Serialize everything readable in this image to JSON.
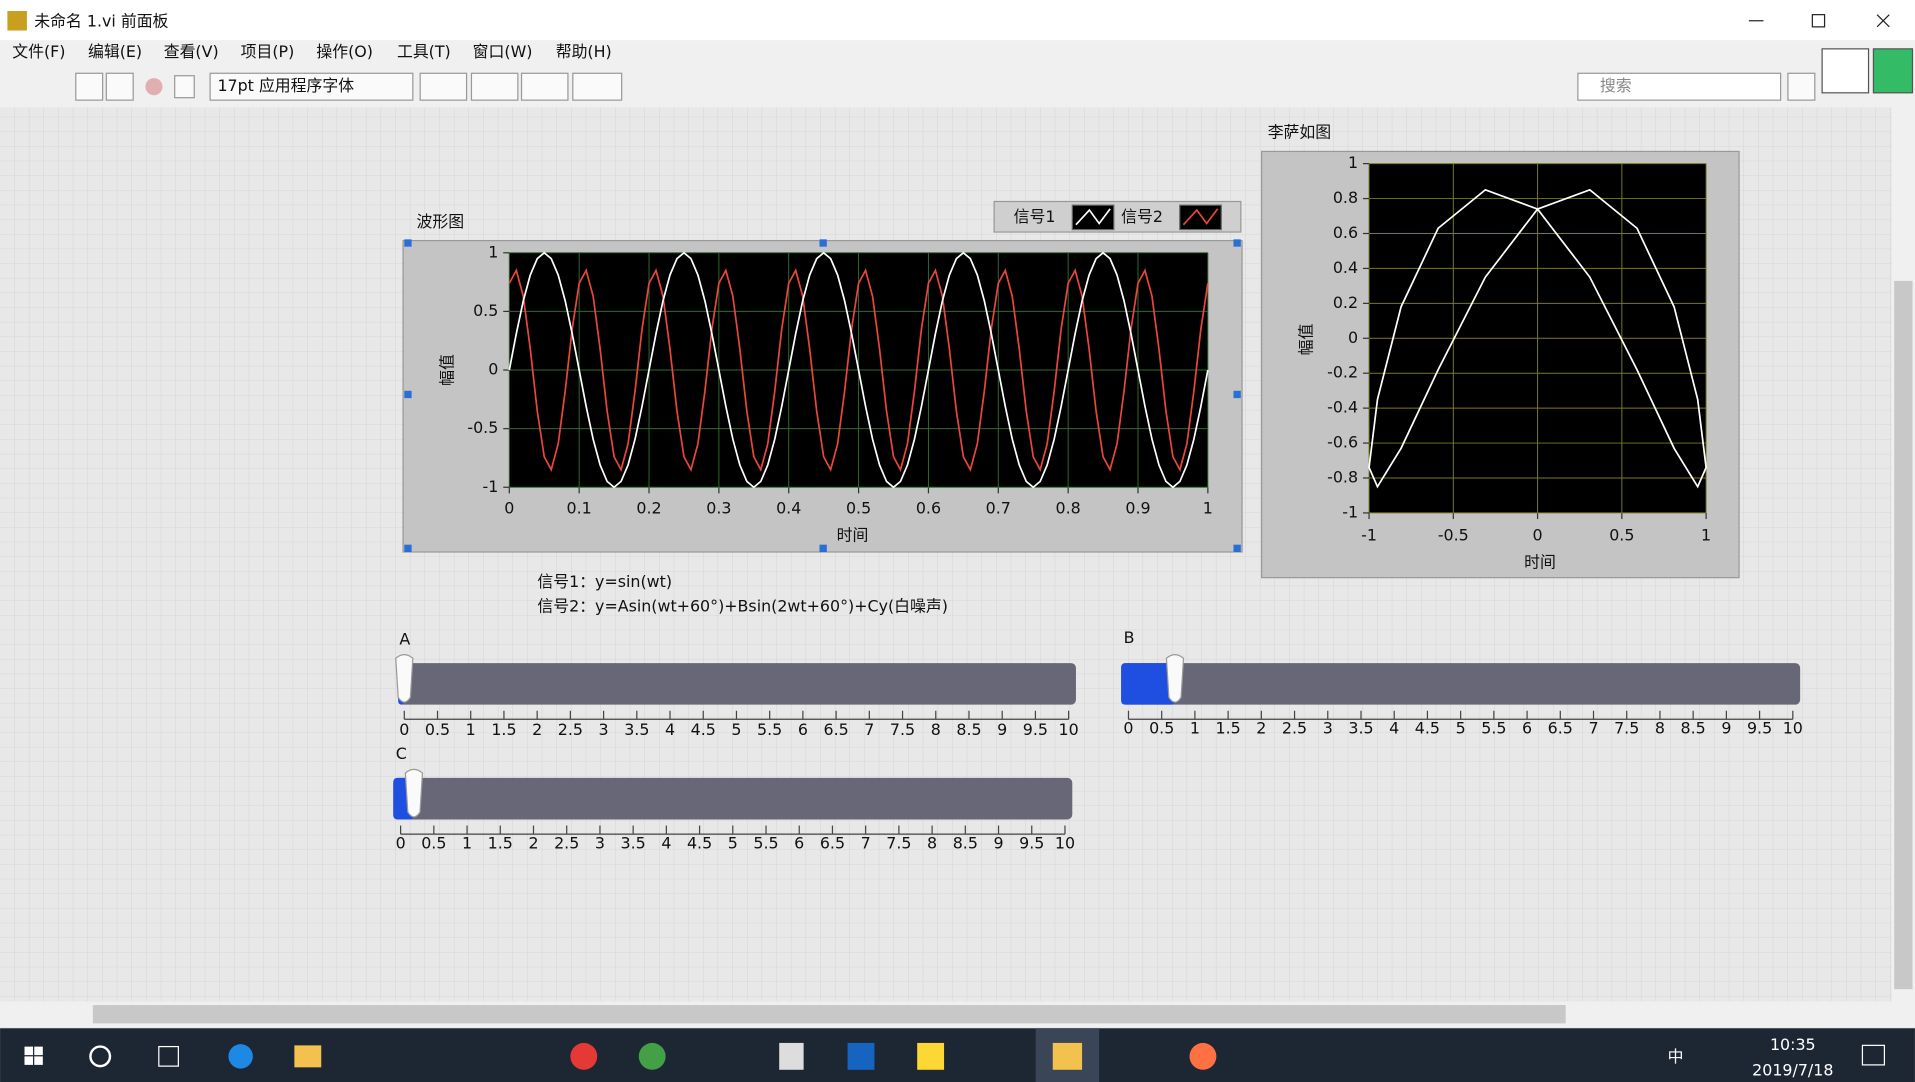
{
  "window": {
    "title": "未命名 1.vi 前面板"
  },
  "menu": [
    "文件(F)",
    "编辑(E)",
    "查看(V)",
    "项目(P)",
    "操作(O)",
    "工具(T)",
    "窗口(W)",
    "帮助(H)"
  ],
  "toolbar": {
    "font": "17pt 应用程序字体",
    "search_placeholder": "搜索"
  },
  "chart_data": [
    {
      "type": "waveform",
      "title": "波形图",
      "x_label": "时间",
      "y_label": "幅值",
      "xlim": [
        0,
        1
      ],
      "ylim": [
        -1,
        1
      ],
      "xticks": [
        0,
        0.1,
        0.2,
        0.3,
        0.4,
        0.5,
        0.6,
        0.7,
        0.8,
        0.9,
        1
      ],
      "yticks": [
        -1,
        -0.5,
        0,
        0.5,
        1
      ],
      "grid": true,
      "x": [
        0,
        0.01,
        0.02,
        0.03,
        0.04,
        0.05,
        0.06,
        0.07,
        0.08,
        0.09,
        0.1,
        0.11,
        0.12,
        0.13,
        0.14,
        0.15,
        0.16,
        0.17,
        0.18,
        0.19,
        0.2,
        0.21,
        0.22,
        0.23,
        0.24,
        0.25,
        0.26,
        0.27,
        0.28,
        0.29,
        0.3,
        0.31,
        0.32,
        0.33,
        0.34,
        0.35,
        0.36,
        0.37,
        0.38,
        0.39,
        0.4,
        0.41,
        0.42,
        0.43,
        0.44,
        0.45,
        0.46,
        0.47,
        0.48,
        0.49,
        0.5,
        0.51,
        0.52,
        0.53,
        0.54,
        0.55,
        0.56,
        0.57,
        0.58,
        0.59,
        0.6,
        0.61,
        0.62,
        0.63,
        0.64,
        0.65,
        0.66,
        0.67,
        0.68,
        0.69,
        0.7,
        0.71,
        0.72,
        0.73,
        0.74,
        0.75,
        0.76,
        0.77,
        0.78,
        0.79,
        0.8,
        0.81,
        0.82,
        0.83,
        0.84,
        0.85,
        0.86,
        0.87,
        0.88,
        0.89,
        0.9,
        0.91,
        0.92,
        0.93,
        0.94,
        0.95,
        0.96,
        0.97,
        0.98,
        0.99,
        1
      ],
      "series": [
        {
          "name": "信号1",
          "color": "#ffffff",
          "values": [
            0,
            0.31,
            0.59,
            0.81,
            0.95,
            1,
            0.95,
            0.81,
            0.59,
            0.31,
            0,
            -0.31,
            -0.59,
            -0.81,
            -0.95,
            -1,
            -0.95,
            -0.81,
            -0.59,
            -0.31,
            0,
            0.31,
            0.59,
            0.81,
            0.95,
            1,
            0.95,
            0.81,
            0.59,
            0.31,
            0,
            -0.31,
            -0.59,
            -0.81,
            -0.95,
            -1,
            -0.95,
            -0.81,
            -0.59,
            -0.31,
            0,
            0.31,
            0.59,
            0.81,
            0.95,
            1,
            0.95,
            0.81,
            0.59,
            0.31,
            0,
            -0.31,
            -0.59,
            -0.81,
            -0.95,
            -1,
            -0.95,
            -0.81,
            -0.59,
            -0.31,
            0,
            0.31,
            0.59,
            0.81,
            0.95,
            1,
            0.95,
            0.81,
            0.59,
            0.31,
            0,
            -0.31,
            -0.59,
            -0.81,
            -0.95,
            -1,
            -0.95,
            -0.81,
            -0.59,
            -0.31,
            0,
            0.31,
            0.59,
            0.81,
            0.95,
            1,
            0.95,
            0.81,
            0.59,
            0.31,
            0,
            -0.31,
            -0.59,
            -0.81,
            -0.95,
            -1,
            -0.95,
            -0.81,
            -0.59,
            -0.31,
            0
          ]
        },
        {
          "name": "信号2",
          "color": "#e8473a",
          "values": [
            0.74,
            0.85,
            0.63,
            0.18,
            -0.35,
            -0.74,
            -0.85,
            -0.63,
            -0.18,
            0.35,
            0.74,
            0.85,
            0.63,
            0.18,
            -0.35,
            -0.74,
            -0.85,
            -0.63,
            -0.18,
            0.35,
            0.74,
            0.85,
            0.63,
            0.18,
            -0.35,
            -0.74,
            -0.85,
            -0.63,
            -0.18,
            0.35,
            0.74,
            0.85,
            0.63,
            0.18,
            -0.35,
            -0.74,
            -0.85,
            -0.63,
            -0.18,
            0.35,
            0.74,
            0.85,
            0.63,
            0.18,
            -0.35,
            -0.74,
            -0.85,
            -0.63,
            -0.18,
            0.35,
            0.74,
            0.85,
            0.63,
            0.18,
            -0.35,
            -0.74,
            -0.85,
            -0.63,
            -0.18,
            0.35,
            0.74,
            0.85,
            0.63,
            0.18,
            -0.35,
            -0.74,
            -0.85,
            -0.63,
            -0.18,
            0.35,
            0.74,
            0.85,
            0.63,
            0.18,
            -0.35,
            -0.74,
            -0.85,
            -0.63,
            -0.18,
            0.35,
            0.74,
            0.85,
            0.63,
            0.18,
            -0.35,
            -0.74,
            -0.85,
            -0.63,
            -0.18,
            0.35,
            0.74,
            0.85,
            0.63,
            0.18,
            -0.35,
            -0.74,
            -0.85,
            -0.63,
            -0.18,
            0.35,
            0.74
          ]
        }
      ]
    },
    {
      "type": "xy",
      "title": "李萨如图",
      "x_label": "时间",
      "y_label": "幅值",
      "color": "#ffffff",
      "xlim": [
        -1,
        1
      ],
      "ylim": [
        -1,
        1
      ],
      "xticks": [
        -1,
        -0.5,
        0,
        0.5,
        1
      ],
      "yticks": [
        -1,
        -0.8,
        -0.6,
        -0.4,
        -0.2,
        0,
        0.2,
        0.4,
        0.6,
        0.8,
        1
      ],
      "grid": true
    }
  ],
  "notes": [
    "信号1：y=sin(wt)",
    "信号2：y=Asin(wt+60°)+Bsin(2wt+60°)+Cy(白噪声)"
  ],
  "sliders": [
    {
      "label": "A",
      "value": 0,
      "lim": [
        0,
        10
      ],
      "ticks": [
        0,
        0.5,
        1,
        1.5,
        2,
        2.5,
        3,
        3.5,
        4,
        4.5,
        5,
        5.5,
        6,
        6.5,
        7,
        7.5,
        8,
        8.5,
        9,
        9.5,
        10
      ]
    },
    {
      "label": "B",
      "value": 0.7,
      "lim": [
        0,
        10
      ],
      "ticks": [
        0,
        0.5,
        1,
        1.5,
        2,
        2.5,
        3,
        3.5,
        4,
        4.5,
        5,
        5.5,
        6,
        6.5,
        7,
        7.5,
        8,
        8.5,
        9,
        9.5,
        10
      ]
    },
    {
      "label": "C",
      "value": 0.2,
      "lim": [
        0,
        10
      ],
      "ticks": [
        0,
        0.5,
        1,
        1.5,
        2,
        2.5,
        3,
        3.5,
        4,
        4.5,
        5,
        5.5,
        6,
        6.5,
        7,
        7.5,
        8,
        8.5,
        9,
        9.5,
        10
      ]
    }
  ],
  "taskbar": {
    "ime": "中",
    "time": "10:35",
    "date": "2019/7/18"
  }
}
